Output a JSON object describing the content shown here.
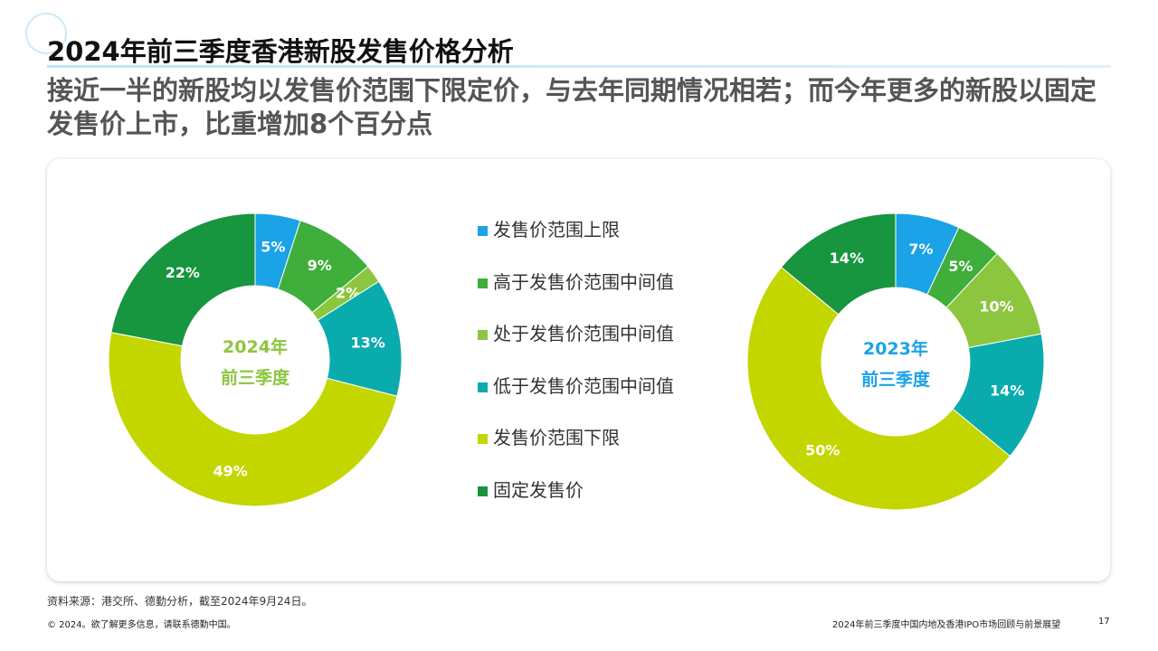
{
  "header": {
    "title": "2024年前三季度香港新股发售价格分析",
    "subtitle": "接近一半的新股均以发售价范围下限定价，与去年同期情况相若；而今年更多的新股以固定发售价上市，比重增加8个百分点"
  },
  "colors": {
    "upper": "#1aa3e6",
    "above_mid": "#3fae3b",
    "at_mid": "#8cc63f",
    "below_mid": "#0aabad",
    "lower": "#c4d600",
    "fixed": "#17953f",
    "center_2024": "#8cc63f",
    "center_2023": "#1aa3e6"
  },
  "chart_data": [
    {
      "type": "pie",
      "title": "",
      "center_label": [
        "2024年",
        "前三季度"
      ],
      "categories": [
        "发售价范围上限",
        "高于发售价范围中间值",
        "处于发售价范围中间值",
        "低于发售价范围中间值",
        "发售价范围下限",
        "固定发售价"
      ],
      "values": [
        5,
        9,
        2,
        13,
        49,
        22
      ],
      "data_labels": [
        "5%",
        "9%",
        "2%",
        "13%",
        "49%",
        "22%"
      ]
    },
    {
      "type": "pie",
      "title": "",
      "center_label": [
        "2023年",
        "前三季度"
      ],
      "categories": [
        "发售价范围上限",
        "高于发售价范围中间值",
        "处于发售价范围中间值",
        "低于发售价范围中间值",
        "发售价范围下限",
        "固定发售价"
      ],
      "values": [
        7,
        5,
        10,
        14,
        50,
        14
      ],
      "data_labels": [
        "7%",
        "5%",
        "10%",
        "14%",
        "50%",
        "14%"
      ]
    }
  ],
  "legend": {
    "placement": "center",
    "items": [
      {
        "label": "发售价范围上限",
        "color_key": "upper"
      },
      {
        "label": "高于发售价范围中间值",
        "color_key": "above_mid"
      },
      {
        "label": "处于发售价范围中间值",
        "color_key": "at_mid"
      },
      {
        "label": "低于发售价范围中间值",
        "color_key": "below_mid"
      },
      {
        "label": "发售价范围下限",
        "color_key": "lower"
      },
      {
        "label": "固定发售价",
        "color_key": "fixed"
      }
    ]
  },
  "footer": {
    "source": "资料来源：港交所、德勤分析，截至2024年9月24日。",
    "copyright": "© 2024。欲了解更多信息，请联系德勤中国。",
    "report_title": "2024年前三季度中国内地及香港IPO市场回顾与前景展望",
    "page": "17"
  }
}
